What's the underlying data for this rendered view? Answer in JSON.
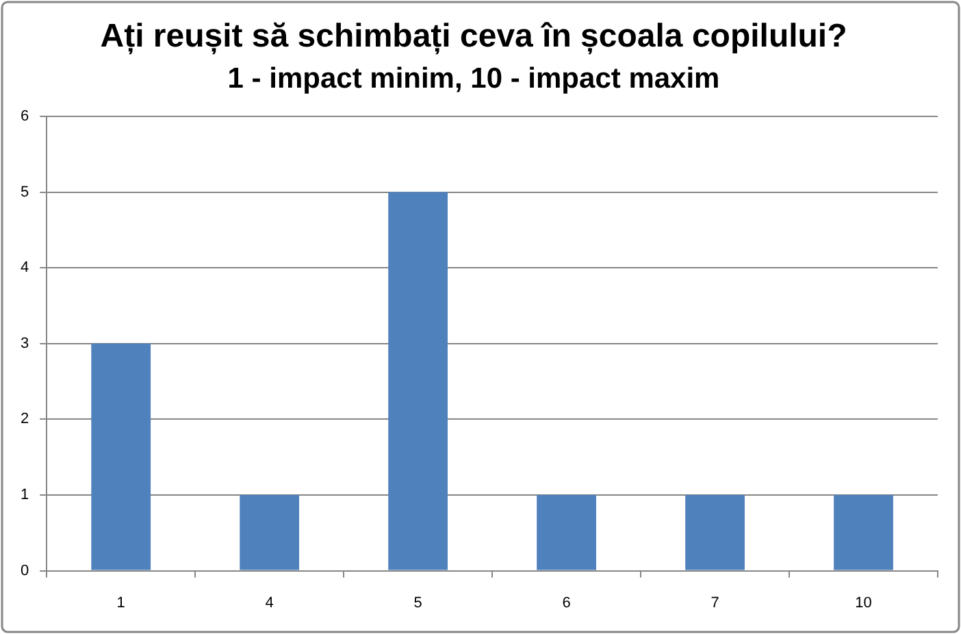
{
  "chart_data": {
    "type": "bar",
    "title": "Ați reușit să schimbați ceva în școala copilului?",
    "subtitle": "1 - impact minim, 10 - impact maxim",
    "categories": [
      "1",
      "4",
      "5",
      "6",
      "7",
      "10"
    ],
    "values": [
      3,
      1,
      5,
      1,
      1,
      1
    ],
    "color": "#4f81bd",
    "ylim": [
      0,
      6
    ],
    "yticks": [
      0,
      1,
      2,
      3,
      4,
      5,
      6
    ],
    "grid": "y"
  }
}
